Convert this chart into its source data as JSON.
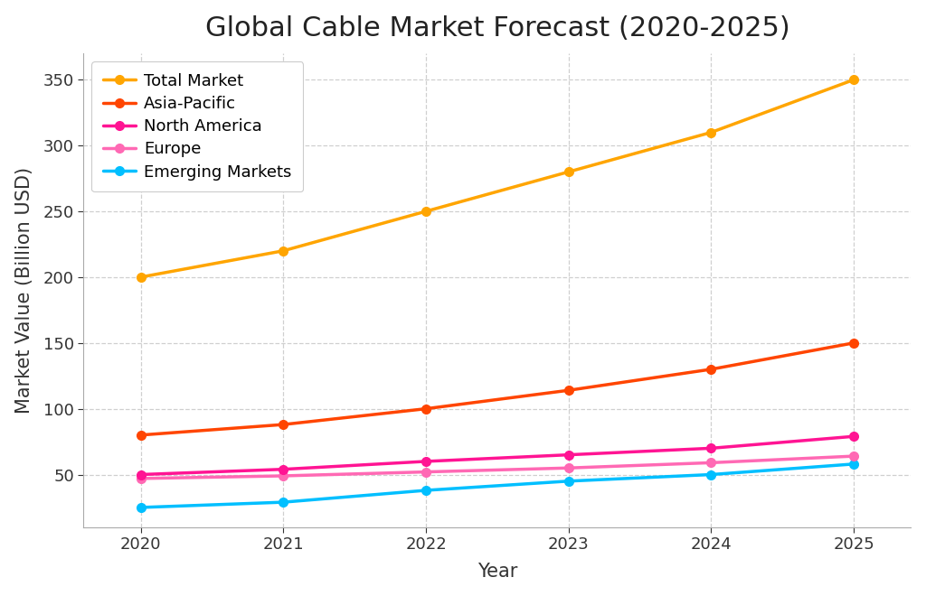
{
  "title": "Global Cable Market Forecast (2020-2025)",
  "xlabel": "Year",
  "ylabel": "Market Value (Billion USD)",
  "years": [
    2020,
    2021,
    2022,
    2023,
    2024,
    2025
  ],
  "series": [
    {
      "label": "Total Market",
      "values": [
        200,
        220,
        250,
        280,
        310,
        350
      ],
      "color": "#FFA500",
      "zorder": 5
    },
    {
      "label": "Asia-Pacific",
      "values": [
        80,
        88,
        100,
        114,
        130,
        150
      ],
      "color": "#FF4500",
      "zorder": 4
    },
    {
      "label": "North America",
      "values": [
        50,
        54,
        60,
        65,
        70,
        79
      ],
      "color": "#FF1493",
      "zorder": 3
    },
    {
      "label": "Europe",
      "values": [
        47,
        49,
        52,
        55,
        59,
        64
      ],
      "color": "#FF69B4",
      "zorder": 2
    },
    {
      "label": "Emerging Markets",
      "values": [
        25,
        29,
        38,
        45,
        50,
        58
      ],
      "color": "#00BFFF",
      "zorder": 1
    }
  ],
  "ylim": [
    10,
    370
  ],
  "yticks": [
    50,
    100,
    150,
    200,
    250,
    300,
    350
  ],
  "title_fontsize": 22,
  "axis_label_fontsize": 15,
  "tick_fontsize": 13,
  "legend_fontsize": 13,
  "linewidth": 2.5,
  "markersize": 7,
  "background_color": "#ffffff",
  "grid_color": "#bbbbbb",
  "grid_linestyle": "--",
  "grid_alpha": 0.7
}
